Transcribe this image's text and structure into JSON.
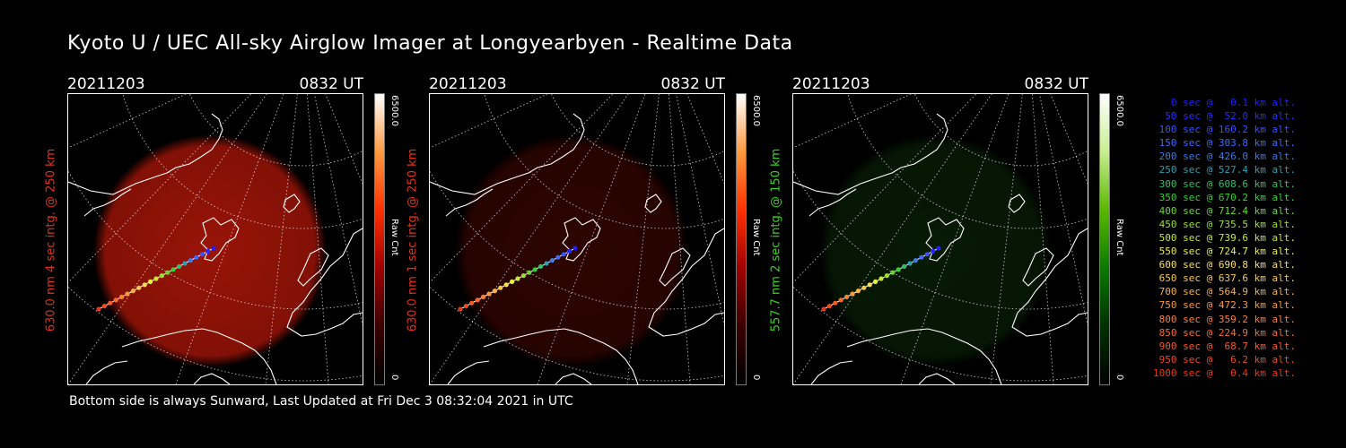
{
  "title": "Kyoto U / UEC All-sky Airglow Imager at Longyearbyen - Realtime Data",
  "footer": "Bottom side is always Sunward, Last Updated at Fri Dec  3 08:32:04 2021 in UTC",
  "panels": [
    {
      "date": "20211203",
      "time": "0832 UT",
      "label": "630.0 nm 4 sec intg. @ 250 km",
      "label_color": "#e0321e",
      "cbar_max": "6500.0",
      "cbar_min": "0",
      "cbar_title": "Raw Cnt",
      "tint": "#cc1a0a",
      "tint_opacity": 0.75,
      "cbar_gradient": "linear-gradient(to top,#000,#3a0000,#a00000,#ff3000,#ff9a40,#fff)"
    },
    {
      "date": "20211203",
      "time": "0832 UT",
      "label": "630.0 nm 1 sec intg. @ 250 km",
      "label_color": "#e0321e",
      "cbar_max": "6500.0",
      "cbar_min": "0",
      "cbar_title": "Raw Cnt",
      "tint": "#5a0800",
      "tint_opacity": 0.5,
      "cbar_gradient": "linear-gradient(to top,#000,#3a0000,#a00000,#ff3000,#ff9a40,#fff)"
    },
    {
      "date": "20211203",
      "time": "0832 UT",
      "label": "557.7 nm 2 sec intg. @ 150 km",
      "label_color": "#3ad21e",
      "cbar_max": "6500.0",
      "cbar_min": "0",
      "cbar_title": "Raw Cnt",
      "tint": "#0f3a0a",
      "tint_opacity": 0.45,
      "cbar_gradient": "linear-gradient(to top,#000,#003000,#0a7a00,#5ab800,#c8ee90,#fff)"
    }
  ],
  "legend": [
    {
      "text": "0 sec @   0.1 km alt.",
      "color": "#2020ff"
    },
    {
      "text": "50 sec @  52.0 km alt.",
      "color": "#2a2aff"
    },
    {
      "text": "100 sec @ 160.2 km alt.",
      "color": "#3a50ff"
    },
    {
      "text": "150 sec @ 303.8 km alt.",
      "color": "#3a6aff"
    },
    {
      "text": "200 sec @ 426.0 km alt.",
      "color": "#3f7ae0"
    },
    {
      "text": "250 sec @ 527.4 km alt.",
      "color": "#2ea0b0"
    },
    {
      "text": "300 sec @ 608.6 km alt.",
      "color": "#2ec070"
    },
    {
      "text": "350 sec @ 670.2 km alt.",
      "color": "#33d233"
    },
    {
      "text": "400 sec @ 712.4 km alt.",
      "color": "#6ad630"
    },
    {
      "text": "450 sec @ 735.5 km alt.",
      "color": "#9ae030"
    },
    {
      "text": "500 sec @ 739.6 km alt.",
      "color": "#c4e838"
    },
    {
      "text": "550 sec @ 724.7 km alt.",
      "color": "#e8f040"
    },
    {
      "text": "600 sec @ 690.8 km alt.",
      "color": "#f8e050"
    },
    {
      "text": "650 sec @ 637.6 km alt.",
      "color": "#f8c848"
    },
    {
      "text": "700 sec @ 564.9 km alt.",
      "color": "#f8b040"
    },
    {
      "text": "750 sec @ 472.3 km alt.",
      "color": "#f89840"
    },
    {
      "text": "800 sec @ 359.2 km alt.",
      "color": "#f88038"
    },
    {
      "text": "850 sec @ 224.9 km alt.",
      "color": "#f86a30"
    },
    {
      "text": "900 sec @  68.7 km alt.",
      "color": "#f85a28"
    },
    {
      "text": "950 sec @   6.2 km alt.",
      "color": "#f04a20"
    },
    {
      "text": "1000 sec @   0.4 km alt.",
      "color": "#e83a18"
    }
  ]
}
